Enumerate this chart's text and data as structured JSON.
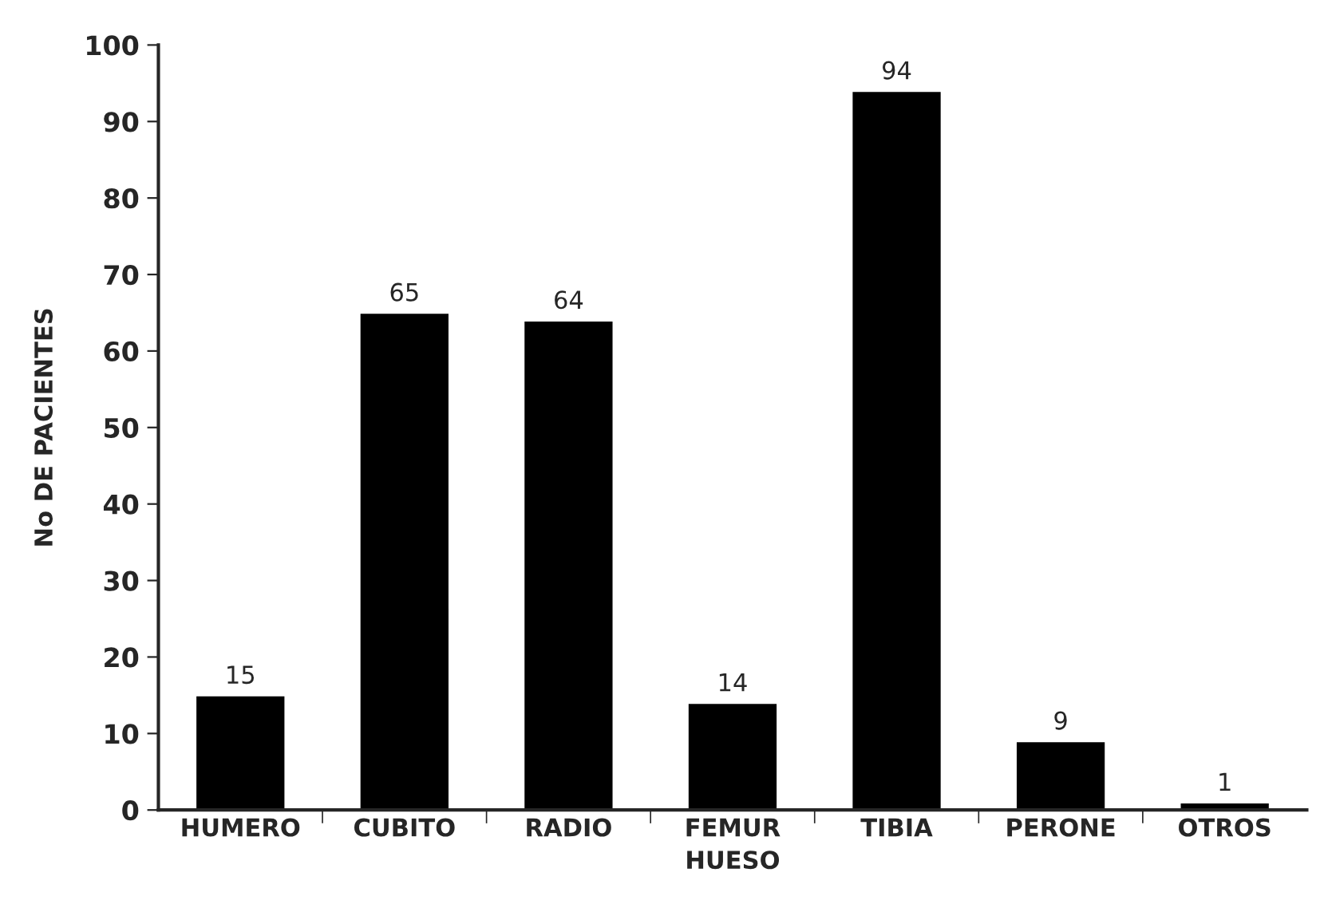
{
  "chart_data": {
    "type": "bar",
    "xlabel": "HUESO",
    "ylabel": "No DE PACIENTES",
    "categories": [
      "HUMERO",
      "CUBITO",
      "RADIO",
      "FEMUR",
      "TIBIA",
      "PERONE",
      "OTROS"
    ],
    "values": [
      15,
      65,
      64,
      14,
      94,
      9,
      1
    ],
    "color": "#000000",
    "ylim": [
      0,
      100
    ],
    "yticks": [
      0,
      10,
      20,
      30,
      40,
      50,
      60,
      70,
      80,
      90,
      100
    ],
    "data_labels": true,
    "grid": false
  }
}
